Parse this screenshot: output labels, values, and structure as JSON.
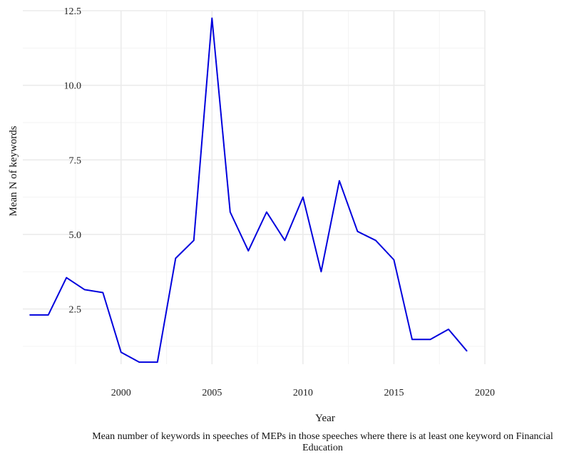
{
  "chart_data": {
    "type": "line",
    "title": "",
    "xlabel": "Year",
    "ylabel": "Mean N of keywords",
    "caption": "Mean number of keywords in speeches of MEPs in those speeches where there is at least one keyword on Financial Education",
    "xlim": [
      1994.6,
      2020
    ],
    "ylim": [
      0.65,
      12.5
    ],
    "x_ticks": [
      "2000",
      "2005",
      "2010",
      "2015",
      "2020"
    ],
    "y_ticks": [
      "2.5",
      "5.0",
      "7.5",
      "10.0",
      "12.5"
    ],
    "grid": true,
    "legend": "none",
    "series": [
      {
        "color": "#0000dd",
        "x": [
          1995,
          1996,
          1997,
          1998,
          1999,
          2000,
          2001,
          2002,
          2003,
          2004,
          2005,
          2006,
          2007,
          2008,
          2009,
          2010,
          2011,
          2012,
          2013,
          2014,
          2015,
          2016,
          2017,
          2018,
          2019
        ],
        "y": [
          2.3,
          2.3,
          3.55,
          3.15,
          3.05,
          1.05,
          0.72,
          0.72,
          4.2,
          4.8,
          12.25,
          5.75,
          4.45,
          5.75,
          4.8,
          6.25,
          3.75,
          6.8,
          5.1,
          4.8,
          4.15,
          1.48,
          1.48,
          1.82,
          1.1
        ]
      }
    ]
  }
}
